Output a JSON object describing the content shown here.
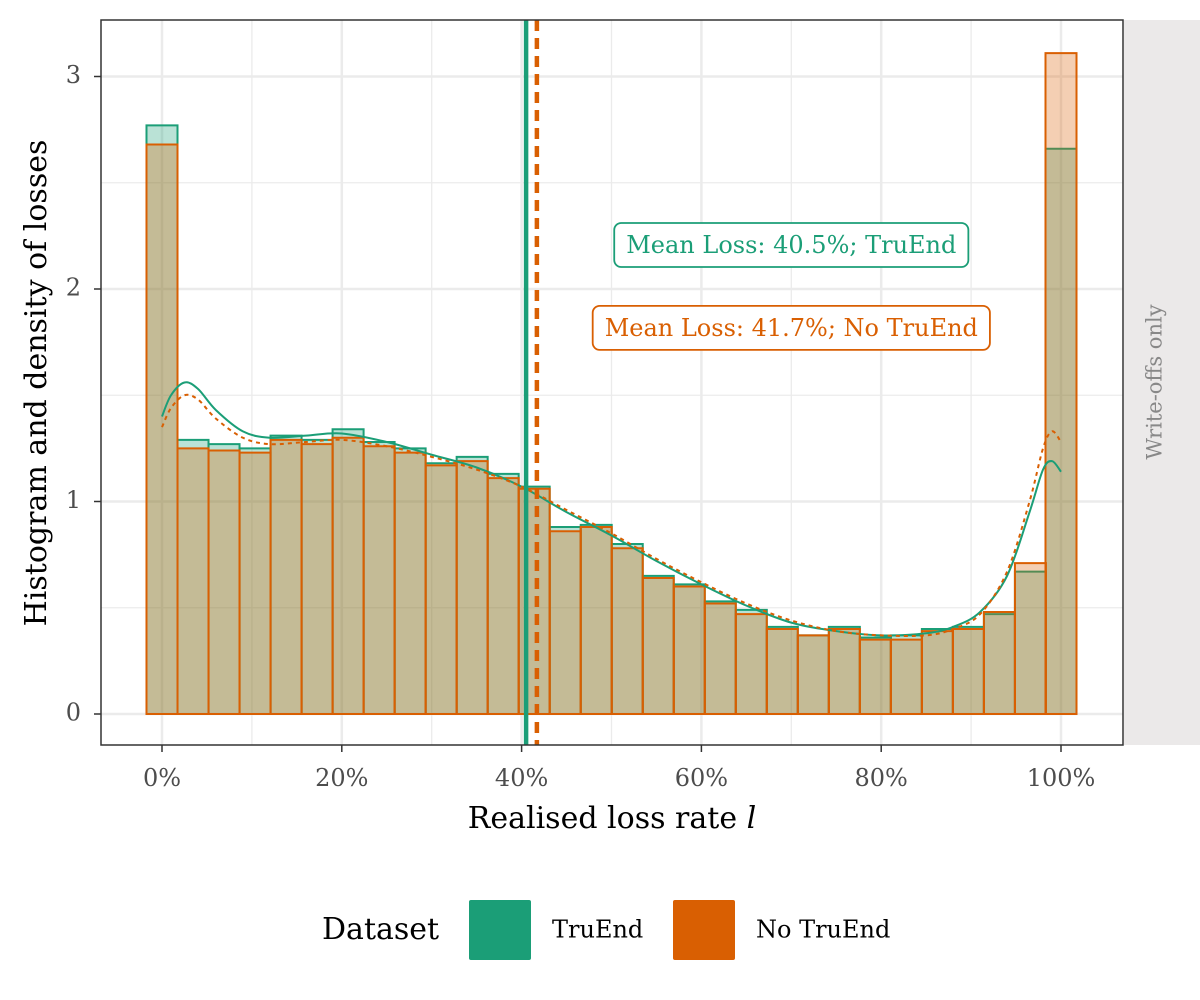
{
  "chart_data": {
    "type": "bar",
    "xlabel": "Realised loss rate l",
    "xlabel_main": "Realised loss rate ",
    "xlabel_var": "l",
    "ylabel": "Histogram and density of losses",
    "facet_label": "Write-offs only",
    "xlim": [
      -0.07,
      1.07
    ],
    "ylim": [
      -0.15,
      3.25
    ],
    "x_ticks": [
      0,
      0.2,
      0.4,
      0.6,
      0.8,
      1.0
    ],
    "x_tick_labels": [
      "0%",
      "20%",
      "40%",
      "60%",
      "80%",
      "100%"
    ],
    "y_ticks": [
      0,
      1,
      2,
      3
    ],
    "y_tick_labels": [
      "0",
      "1",
      "2",
      "3"
    ],
    "grid": true,
    "bin_width": 0.0345,
    "bin_centers": [
      0.0,
      0.0345,
      0.069,
      0.1035,
      0.138,
      0.1725,
      0.207,
      0.2415,
      0.276,
      0.3105,
      0.345,
      0.3795,
      0.414,
      0.4485,
      0.483,
      0.5175,
      0.552,
      0.5865,
      0.621,
      0.6555,
      0.69,
      0.7245,
      0.759,
      0.7935,
      0.828,
      0.8625,
      0.897,
      0.9315,
      0.966,
      1.0
    ],
    "series": [
      {
        "name": "TruEnd",
        "color": "#1B9E77",
        "fill": "#1B9E77",
        "values": [
          2.77,
          1.29,
          1.27,
          1.25,
          1.31,
          1.29,
          1.34,
          1.28,
          1.25,
          1.18,
          1.21,
          1.13,
          1.07,
          0.88,
          0.89,
          0.8,
          0.65,
          0.61,
          0.53,
          0.49,
          0.41,
          0.37,
          0.41,
          0.36,
          0.37,
          0.4,
          0.41,
          0.47,
          0.67,
          2.66
        ],
        "density": [
          [
            0.0,
            1.4
          ],
          [
            0.01,
            1.5
          ],
          [
            0.025,
            1.56
          ],
          [
            0.04,
            1.53
          ],
          [
            0.06,
            1.43
          ],
          [
            0.09,
            1.33
          ],
          [
            0.12,
            1.3
          ],
          [
            0.16,
            1.31
          ],
          [
            0.2,
            1.32
          ],
          [
            0.25,
            1.28
          ],
          [
            0.3,
            1.22
          ],
          [
            0.35,
            1.16
          ],
          [
            0.4,
            1.07
          ],
          [
            0.45,
            0.95
          ],
          [
            0.5,
            0.84
          ],
          [
            0.55,
            0.72
          ],
          [
            0.6,
            0.61
          ],
          [
            0.65,
            0.51
          ],
          [
            0.7,
            0.43
          ],
          [
            0.75,
            0.39
          ],
          [
            0.8,
            0.37
          ],
          [
            0.85,
            0.38
          ],
          [
            0.88,
            0.41
          ],
          [
            0.91,
            0.48
          ],
          [
            0.94,
            0.65
          ],
          [
            0.965,
            0.95
          ],
          [
            0.98,
            1.15
          ],
          [
            0.99,
            1.19
          ],
          [
            1.0,
            1.14
          ]
        ]
      },
      {
        "name": "No TruEnd",
        "color": "#D95F02",
        "fill": "#D95F02",
        "values": [
          2.68,
          1.25,
          1.24,
          1.23,
          1.29,
          1.27,
          1.3,
          1.26,
          1.23,
          1.17,
          1.19,
          1.11,
          1.06,
          0.86,
          0.88,
          0.78,
          0.64,
          0.6,
          0.52,
          0.47,
          0.4,
          0.37,
          0.4,
          0.35,
          0.35,
          0.39,
          0.4,
          0.48,
          0.71,
          3.11
        ],
        "density": [
          [
            0.0,
            1.35
          ],
          [
            0.01,
            1.44
          ],
          [
            0.025,
            1.5
          ],
          [
            0.04,
            1.48
          ],
          [
            0.06,
            1.39
          ],
          [
            0.09,
            1.3
          ],
          [
            0.12,
            1.27
          ],
          [
            0.16,
            1.28
          ],
          [
            0.2,
            1.29
          ],
          [
            0.25,
            1.26
          ],
          [
            0.3,
            1.21
          ],
          [
            0.35,
            1.15
          ],
          [
            0.4,
            1.07
          ],
          [
            0.45,
            0.96
          ],
          [
            0.5,
            0.85
          ],
          [
            0.55,
            0.73
          ],
          [
            0.6,
            0.62
          ],
          [
            0.65,
            0.52
          ],
          [
            0.7,
            0.44
          ],
          [
            0.75,
            0.39
          ],
          [
            0.8,
            0.37
          ],
          [
            0.85,
            0.37
          ],
          [
            0.88,
            0.4
          ],
          [
            0.91,
            0.47
          ],
          [
            0.94,
            0.67
          ],
          [
            0.965,
            1.0
          ],
          [
            0.98,
            1.25
          ],
          [
            0.99,
            1.33
          ],
          [
            1.0,
            1.28
          ]
        ]
      }
    ],
    "mean_lines": [
      {
        "series": "TruEnd",
        "x": 0.405,
        "style": "solid",
        "color": "#1B9E77"
      },
      {
        "series": "No TruEnd",
        "x": 0.417,
        "style": "dashed",
        "color": "#D95F02"
      }
    ],
    "annotations": [
      {
        "text": "Mean Loss: 40.5%; TruEnd",
        "x": 0.7,
        "y": 2.2,
        "color": "#1B9E77"
      },
      {
        "text": "Mean Loss: 41.7%; No TruEnd",
        "x": 0.7,
        "y": 1.81,
        "color": "#D95F02"
      }
    ],
    "legend": {
      "title": "Dataset",
      "position": "bottom",
      "items": [
        {
          "label": "TruEnd",
          "color": "#1B9E77",
          "line": "solid"
        },
        {
          "label": "No TruEnd",
          "color": "#D95F02",
          "line": "dashed"
        }
      ]
    }
  }
}
